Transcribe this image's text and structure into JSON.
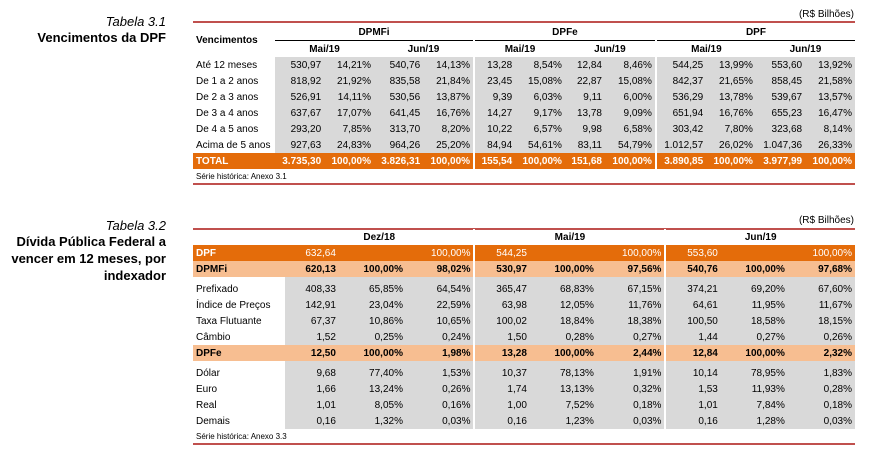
{
  "t1": {
    "num": "Tabela 3.1",
    "title": "Vencimentos da DPF",
    "unit": "(R$ Bilhões)",
    "h_venc": "Vencimentos",
    "groups": [
      "DPMFi",
      "DPFe",
      "DPF"
    ],
    "months": [
      "Mai/19",
      "Jun/19"
    ],
    "rows": [
      {
        "label": "Até 12 meses",
        "v": [
          "530,97",
          "14,21%",
          "540,76",
          "14,13%",
          "13,28",
          "8,54%",
          "12,84",
          "8,46%",
          "544,25",
          "13,99%",
          "553,60",
          "13,92%"
        ]
      },
      {
        "label": "De 1 a 2 anos",
        "v": [
          "818,92",
          "21,92%",
          "835,58",
          "21,84%",
          "23,45",
          "15,08%",
          "22,87",
          "15,08%",
          "842,37",
          "21,65%",
          "858,45",
          "21,58%"
        ]
      },
      {
        "label": "De 2 a 3 anos",
        "v": [
          "526,91",
          "14,11%",
          "530,56",
          "13,87%",
          "9,39",
          "6,03%",
          "9,11",
          "6,00%",
          "536,29",
          "13,78%",
          "539,67",
          "13,57%"
        ]
      },
      {
        "label": "De 3 a 4 anos",
        "v": [
          "637,67",
          "17,07%",
          "641,45",
          "16,76%",
          "14,27",
          "9,17%",
          "13,78",
          "9,09%",
          "651,94",
          "16,76%",
          "655,23",
          "16,47%"
        ]
      },
      {
        "label": "De 4 a 5 anos",
        "v": [
          "293,20",
          "7,85%",
          "313,70",
          "8,20%",
          "10,22",
          "6,57%",
          "9,98",
          "6,58%",
          "303,42",
          "7,80%",
          "323,68",
          "8,14%"
        ]
      },
      {
        "label": "Acima de 5 anos",
        "v": [
          "927,63",
          "24,83%",
          "964,26",
          "25,20%",
          "84,94",
          "54,61%",
          "83,11",
          "54,79%",
          "1.012,57",
          "26,02%",
          "1.047,36",
          "26,33%"
        ]
      }
    ],
    "total": {
      "label": "TOTAL",
      "v": [
        "3.735,30",
        "100,00%",
        "3.826,31",
        "100,00%",
        "155,54",
        "100,00%",
        "151,68",
        "100,00%",
        "3.890,85",
        "100,00%",
        "3.977,99",
        "100,00%"
      ]
    },
    "source": "Série histórica: Anexo 3.1"
  },
  "t2": {
    "num": "Tabela 3.2",
    "title": "Dívida Pública Federal a vencer em 12 meses, por indexador",
    "unit": "(R$ Bilhões)",
    "months": [
      "Dez/18",
      "Mai/19",
      "Jun/19"
    ],
    "rows": [
      {
        "label": "DPF",
        "style": "orange",
        "v": [
          "632,64",
          "",
          "100,00%",
          "544,25",
          "",
          "100,00%",
          "553,60",
          "",
          "100,00%"
        ]
      },
      {
        "label": "DPMFi",
        "style": "peach",
        "v": [
          "620,13",
          "100,00%",
          "98,02%",
          "530,97",
          "100,00%",
          "97,56%",
          "540,76",
          "100,00%",
          "97,68%"
        ]
      },
      {
        "label": "Prefixado",
        "style": "g",
        "v": [
          "408,33",
          "65,85%",
          "64,54%",
          "365,47",
          "68,83%",
          "67,15%",
          "374,21",
          "69,20%",
          "67,60%"
        ]
      },
      {
        "label": "Índice de Preços",
        "style": "g",
        "v": [
          "142,91",
          "23,04%",
          "22,59%",
          "63,98",
          "12,05%",
          "11,76%",
          "64,61",
          "11,95%",
          "11,67%"
        ]
      },
      {
        "label": "Taxa Flutuante",
        "style": "g",
        "v": [
          "67,37",
          "10,86%",
          "10,65%",
          "100,02",
          "18,84%",
          "18,38%",
          "100,50",
          "18,58%",
          "18,15%"
        ]
      },
      {
        "label": "Câmbio",
        "style": "g",
        "v": [
          "1,52",
          "0,25%",
          "0,24%",
          "1,50",
          "0,28%",
          "0,27%",
          "1,44",
          "0,27%",
          "0,26%"
        ]
      },
      {
        "label": "DPFe",
        "style": "peach",
        "v": [
          "12,50",
          "100,00%",
          "1,98%",
          "13,28",
          "100,00%",
          "2,44%",
          "12,84",
          "100,00%",
          "2,32%"
        ]
      },
      {
        "label": "Dólar",
        "style": "g",
        "v": [
          "9,68",
          "77,40%",
          "1,53%",
          "10,37",
          "78,13%",
          "1,91%",
          "10,14",
          "78,95%",
          "1,83%"
        ]
      },
      {
        "label": "Euro",
        "style": "g",
        "v": [
          "1,66",
          "13,24%",
          "0,26%",
          "1,74",
          "13,13%",
          "0,32%",
          "1,53",
          "11,93%",
          "0,28%"
        ]
      },
      {
        "label": "Real",
        "style": "g",
        "v": [
          "1,01",
          "8,05%",
          "0,16%",
          "1,00",
          "7,52%",
          "0,18%",
          "1,01",
          "7,84%",
          "0,18%"
        ]
      },
      {
        "label": "Demais",
        "style": "g",
        "v": [
          "0,16",
          "1,32%",
          "0,03%",
          "0,16",
          "1,23%",
          "0,03%",
          "0,16",
          "1,28%",
          "0,03%"
        ]
      }
    ],
    "source": "Série histórica: Anexo 3.3"
  }
}
